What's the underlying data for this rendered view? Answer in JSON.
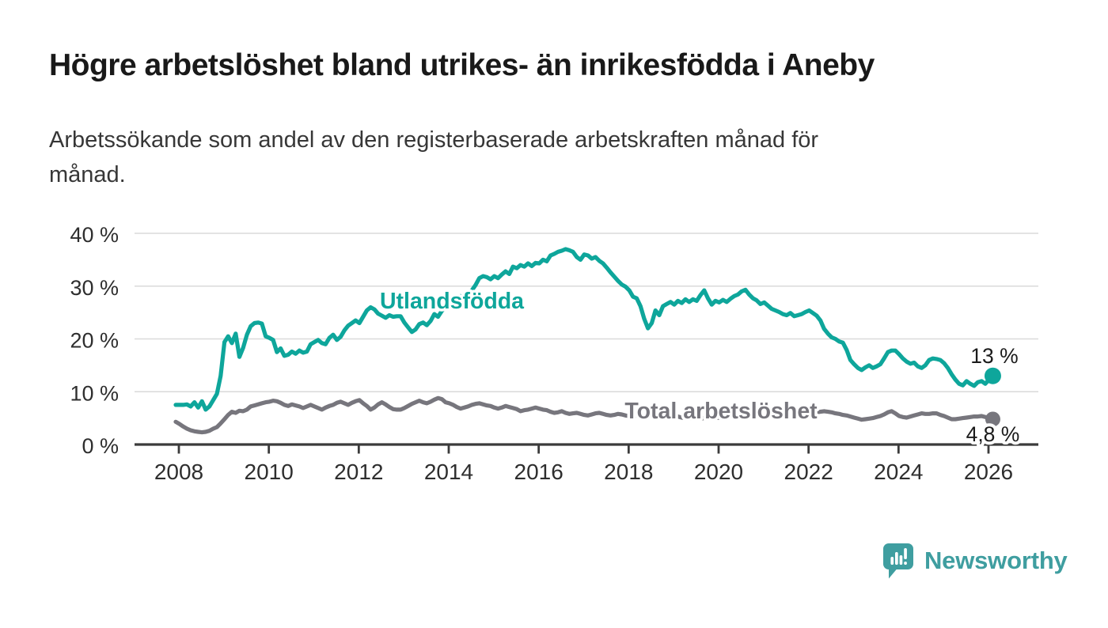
{
  "header": {
    "title": "Högre arbetslöshet bland utrikes- än inrikesfödda i Aneby",
    "subtitle": "Arbetssökande som andel av den registerbaserade arbetskraften månad för\nmånad."
  },
  "chart_data": {
    "type": "line",
    "title": "Högre arbetslöshet bland utrikes- än inrikesfödda i Aneby",
    "subtitle": "Arbetssökande som andel av den registerbaserade arbetskraften månad för månad.",
    "x_unit": "month",
    "x_start_year": 2008,
    "x_interval_months": 1,
    "xlim": [
      2007.9,
      2027.1
    ],
    "ylim": [
      0,
      40
    ],
    "grid": true,
    "x_ticks": [
      2008,
      2010,
      2012,
      2014,
      2016,
      2018,
      2020,
      2022,
      2024,
      2026
    ],
    "x_tick_labels": [
      "2008",
      "2010",
      "2012",
      "2014",
      "2016",
      "2018",
      "2020",
      "2022",
      "2024",
      "2026"
    ],
    "y_ticks": [
      0,
      10,
      20,
      30,
      40
    ],
    "y_tick_labels": [
      "0 %",
      "10 %",
      "20 %",
      "30 %",
      "40 %"
    ],
    "colors": {
      "grid": "#dadada",
      "axis": "#3b3b3b",
      "tick_label": "#2e2e2e",
      "annotation": "#1b1b1b"
    },
    "series": [
      {
        "name": "Utlandsfödda",
        "color": "#0ea69b",
        "end_label": "13 %",
        "end_value": 13,
        "values": [
          7.5,
          7.5,
          7.5,
          7.6,
          7.2,
          8.0,
          7.0,
          8.2,
          6.6,
          7.2,
          8.4,
          9.6,
          13.0,
          19.4,
          20.5,
          19.2,
          21.0,
          16.6,
          18.3,
          20.8,
          22.4,
          23.0,
          23.1,
          22.9,
          20.5,
          20.2,
          19.8,
          17.5,
          18.2,
          16.8,
          17.0,
          17.6,
          17.2,
          17.8,
          17.4,
          17.6,
          19.0,
          19.4,
          19.8,
          19.2,
          19.0,
          20.2,
          20.8,
          19.8,
          20.4,
          21.6,
          22.5,
          23.0,
          23.5,
          23.0,
          24.2,
          25.4,
          26.0,
          25.6,
          24.8,
          24.4,
          24.0,
          24.5,
          24.2,
          24.3,
          24.3,
          23.1,
          22.2,
          21.3,
          21.8,
          22.8,
          23.1,
          22.6,
          23.4,
          24.7,
          24.2,
          25.3,
          26.2,
          26.4,
          27.0,
          26.8,
          28.1,
          27.7,
          28.7,
          29.2,
          30.2,
          31.5,
          31.9,
          31.7,
          31.3,
          31.9,
          31.5,
          32.2,
          32.8,
          32.3,
          33.7,
          33.4,
          34.0,
          33.7,
          34.3,
          33.8,
          34.4,
          34.3,
          35.0,
          34.7,
          35.8,
          36.1,
          36.5,
          36.7,
          37.0,
          36.8,
          36.5,
          35.5,
          35.0,
          36.0,
          35.8,
          35.2,
          35.5,
          34.8,
          34.3,
          33.5,
          32.6,
          31.8,
          31.0,
          30.3,
          29.9,
          29.2,
          28.0,
          27.7,
          26.2,
          23.8,
          22.0,
          23.0,
          25.4,
          24.5,
          26.2,
          26.6,
          27.0,
          26.5,
          27.2,
          26.8,
          27.5,
          27.0,
          27.5,
          27.2,
          28.3,
          29.2,
          27.7,
          26.5,
          27.2,
          26.9,
          27.4,
          27.0,
          27.6,
          28.1,
          28.4,
          29.0,
          29.3,
          28.4,
          27.7,
          27.3,
          26.6,
          26.9,
          26.3,
          25.7,
          25.4,
          25.1,
          24.7,
          24.5,
          24.9,
          24.3,
          24.5,
          24.7,
          25.1,
          25.4,
          24.9,
          24.4,
          23.5,
          21.9,
          21.0,
          20.3,
          20.0,
          19.5,
          19.3,
          17.9,
          16.0,
          15.2,
          14.5,
          14.1,
          14.6,
          15.0,
          14.5,
          14.8,
          15.2,
          16.3,
          17.5,
          17.8,
          17.8,
          17.1,
          16.3,
          15.7,
          15.3,
          15.5,
          14.8,
          14.5,
          15.0,
          16.0,
          16.3,
          16.2,
          16.0,
          15.4,
          14.5,
          13.3,
          12.3,
          11.5,
          11.2,
          12.0,
          11.5,
          11.1,
          11.8,
          12.0,
          11.5,
          12.3,
          13.0
        ]
      },
      {
        "name": "Total arbetslöshet",
        "color": "#77767d",
        "end_label": "4,8 %",
        "end_value": 4.8,
        "values": [
          4.3,
          3.9,
          3.4,
          3.0,
          2.7,
          2.5,
          2.4,
          2.3,
          2.4,
          2.6,
          3.0,
          3.3,
          4.0,
          4.8,
          5.6,
          6.2,
          6.0,
          6.4,
          6.3,
          6.6,
          7.2,
          7.4,
          7.6,
          7.8,
          8.0,
          8.1,
          8.3,
          8.2,
          7.9,
          7.5,
          7.3,
          7.6,
          7.4,
          7.2,
          6.9,
          7.2,
          7.5,
          7.2,
          6.9,
          6.6,
          7.0,
          7.3,
          7.5,
          7.9,
          8.1,
          7.8,
          7.5,
          7.9,
          8.2,
          8.4,
          7.8,
          7.3,
          6.6,
          7.0,
          7.6,
          8.0,
          7.6,
          7.1,
          6.7,
          6.6,
          6.6,
          6.9,
          7.3,
          7.7,
          8.0,
          8.3,
          8.0,
          7.8,
          8.1,
          8.5,
          8.8,
          8.6,
          8.0,
          7.8,
          7.5,
          7.1,
          6.8,
          7.0,
          7.2,
          7.5,
          7.7,
          7.8,
          7.6,
          7.4,
          7.3,
          7.0,
          6.8,
          7.0,
          7.3,
          7.1,
          6.9,
          6.7,
          6.3,
          6.5,
          6.6,
          6.8,
          7.0,
          6.8,
          6.6,
          6.5,
          6.2,
          6.0,
          6.1,
          6.3,
          6.0,
          5.8,
          5.9,
          6.0,
          5.8,
          5.6,
          5.5,
          5.7,
          5.9,
          6.0,
          5.8,
          5.6,
          5.5,
          5.6,
          5.8,
          5.7,
          5.5,
          5.4,
          5.3,
          5.5,
          5.7,
          5.6,
          5.4,
          5.3,
          5.4,
          5.3,
          5.2,
          5.1,
          5.1,
          5.2,
          5.3,
          5.1,
          5.0,
          4.9,
          5.0,
          5.1,
          4.9,
          5.0,
          5.1,
          5.0,
          5.0,
          5.1,
          5.2,
          5.3,
          5.4,
          5.5,
          5.5,
          5.6,
          5.6,
          5.7,
          5.7,
          5.8,
          5.8,
          5.9,
          5.9,
          6.0,
          6.0,
          6.1,
          6.1,
          6.0,
          6.0,
          6.1,
          6.1,
          6.0,
          6.0,
          6.1,
          6.2,
          6.1,
          6.2,
          6.3,
          6.2,
          6.1,
          5.9,
          5.8,
          5.6,
          5.5,
          5.3,
          5.1,
          4.9,
          4.7,
          4.8,
          4.9,
          5.0,
          5.2,
          5.4,
          5.7,
          6.1,
          6.3,
          5.9,
          5.4,
          5.2,
          5.1,
          5.3,
          5.5,
          5.7,
          5.9,
          5.8,
          5.8,
          5.9,
          5.9,
          5.6,
          5.4,
          5.1,
          4.8,
          4.8,
          4.9,
          5.0,
          5.1,
          5.2,
          5.3,
          5.3,
          5.4,
          5.2,
          5.0,
          4.8
        ]
      }
    ],
    "legend_position": "inline-labels"
  },
  "branding": {
    "name": "Newsworthy",
    "color": "#3f9ea0",
    "logo": "bar-chart-speech-bubble-icon"
  }
}
